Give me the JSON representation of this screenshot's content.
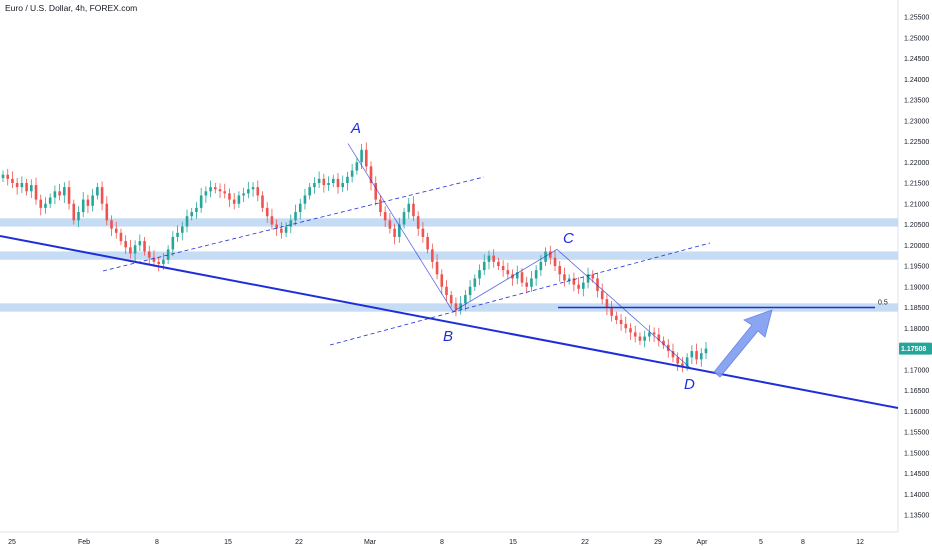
{
  "header": {
    "title": "Euro / U.S. Dollar, 4h, FOREX.com"
  },
  "colors": {
    "up": "#26a69a",
    "down": "#ef5350",
    "zone": "#bbd6f2",
    "pattern": "#1e2fd9",
    "badge": "#26a69a",
    "arrow": "#7e9cf0"
  },
  "chart_data": {
    "type": "candlestick",
    "title": "Euro / U.S. Dollar, 4h, FOREX.com",
    "ylim": [
      1.131,
      1.259
    ],
    "y_ticks": [
      "1.25500",
      "1.25000",
      "1.24500",
      "1.24000",
      "1.23500",
      "1.23000",
      "1.22500",
      "1.22000",
      "1.21500",
      "1.21000",
      "1.20500",
      "1.20000",
      "1.19500",
      "1.19000",
      "1.18500",
      "1.18000",
      "1.17500",
      "1.17000",
      "1.16500",
      "1.16000",
      "1.15500",
      "1.15000",
      "1.14500",
      "1.14000",
      "1.13500"
    ],
    "x_ticks": [
      "25",
      "Feb",
      "8",
      "15",
      "22",
      "Mar",
      "8",
      "15",
      "22",
      "29",
      "Apr",
      "5",
      "8",
      "12"
    ],
    "last_price": "1.17508",
    "fib_label": "0.5",
    "pattern_points": [
      {
        "label": "A",
        "price": 1.2245
      },
      {
        "label": "B",
        "price": 1.184
      },
      {
        "label": "C",
        "price": 1.199
      },
      {
        "label": "D",
        "price": 1.1705
      }
    ],
    "zones": [
      {
        "from": 1.2045,
        "to": 1.2065
      },
      {
        "from": 1.1965,
        "to": 1.1985
      },
      {
        "from": 1.184,
        "to": 1.186
      }
    ],
    "fib_level": 1.185,
    "closes": [
      1.217,
      1.216,
      1.215,
      1.214,
      1.215,
      1.213,
      1.2145,
      1.211,
      1.209,
      1.21,
      1.2115,
      1.213,
      1.212,
      1.214,
      1.21,
      1.206,
      1.208,
      1.211,
      1.2095,
      1.212,
      1.214,
      1.21,
      1.206,
      1.204,
      1.203,
      1.201,
      1.1995,
      1.198,
      1.2,
      1.201,
      1.1985,
      1.197,
      1.196,
      1.1955,
      1.1965,
      1.199,
      1.202,
      1.203,
      1.2045,
      1.207,
      1.208,
      1.209,
      1.212,
      1.213,
      1.214,
      1.2135,
      1.213,
      1.2125,
      1.211,
      1.21,
      1.212,
      1.2125,
      1.2135,
      1.214,
      1.212,
      1.209,
      1.207,
      1.205,
      1.204,
      1.203,
      1.2045,
      1.206,
      1.208,
      1.21,
      1.212,
      1.214,
      1.215,
      1.216,
      1.2145,
      1.215,
      1.216,
      1.214,
      1.215,
      1.2165,
      1.218,
      1.22,
      1.223,
      1.219,
      1.215,
      1.211,
      1.208,
      1.206,
      1.204,
      1.202,
      1.205,
      1.208,
      1.21,
      1.207,
      1.204,
      1.202,
      1.199,
      1.196,
      1.193,
      1.19,
      1.188,
      1.186,
      1.1845,
      1.186,
      1.188,
      1.19,
      1.192,
      1.194,
      1.196,
      1.1975,
      1.196,
      1.195,
      1.194,
      1.193,
      1.192,
      1.1935,
      1.191,
      1.19,
      1.192,
      1.194,
      1.196,
      1.1985,
      1.197,
      1.195,
      1.193,
      1.1915,
      1.192,
      1.1905,
      1.1895,
      1.191,
      1.193,
      1.192,
      1.189,
      1.187,
      1.185,
      1.183,
      1.182,
      1.181,
      1.18,
      1.179,
      1.178,
      1.177,
      1.178,
      1.179,
      1.1785,
      1.177,
      1.176,
      1.1745,
      1.173,
      1.1715,
      1.1708,
      1.173,
      1.1745,
      1.1725,
      1.174,
      1.1751
    ]
  }
}
